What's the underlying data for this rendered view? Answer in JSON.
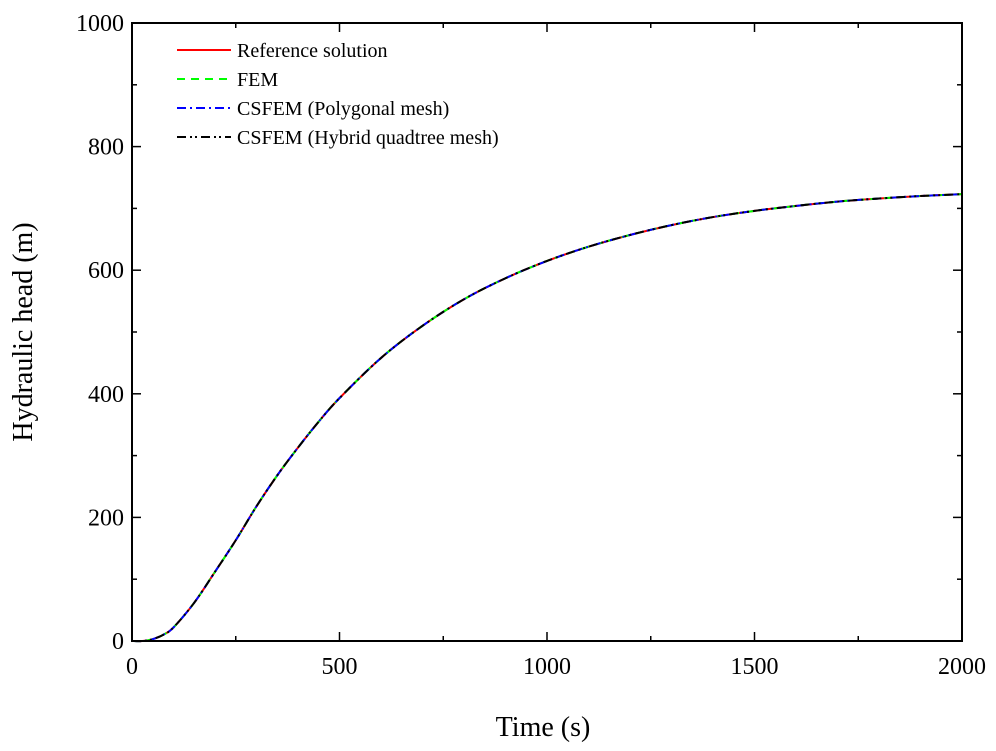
{
  "chart_data": {
    "type": "line",
    "title": "",
    "xlabel": "Time (s)",
    "ylabel": "Hydraulic head (m)",
    "xlim": [
      0,
      2000
    ],
    "ylim": [
      0,
      1000
    ],
    "xticks": [
      0,
      500,
      1000,
      1500,
      2000
    ],
    "yticks": [
      0,
      200,
      400,
      600,
      800,
      1000
    ],
    "xminor_step": 250,
    "yminor_step": 100,
    "grid": false,
    "legend_position": "top-left",
    "x": [
      0,
      25,
      50,
      75,
      100,
      150,
      200,
      250,
      300,
      350,
      400,
      450,
      500,
      600,
      700,
      800,
      900,
      1000,
      1100,
      1200,
      1300,
      1400,
      1500,
      1600,
      1700,
      1800,
      1900,
      2000
    ],
    "series": [
      {
        "name": "Reference solution",
        "color": "#ff0000",
        "dash": "solid",
        "values": [
          0,
          0,
          3,
          10,
          22,
          62,
          112,
          163,
          218,
          268,
          313,
          355,
          393,
          458,
          510,
          553,
          587,
          615,
          638,
          657,
          673,
          686,
          696,
          704,
          711,
          716,
          720,
          723
        ]
      },
      {
        "name": "FEM",
        "color": "#00ff00",
        "dash": "dash",
        "values": [
          0,
          0,
          3,
          10,
          22,
          62,
          112,
          163,
          218,
          268,
          313,
          355,
          393,
          458,
          510,
          553,
          587,
          615,
          638,
          657,
          673,
          686,
          696,
          704,
          711,
          716,
          720,
          723
        ]
      },
      {
        "name": "CSFEM (Polygonal mesh)",
        "color": "#0000ff",
        "dash": "dashdot",
        "values": [
          0,
          0,
          3,
          10,
          22,
          62,
          112,
          163,
          218,
          268,
          313,
          355,
          393,
          458,
          510,
          553,
          587,
          615,
          638,
          657,
          673,
          686,
          696,
          704,
          711,
          716,
          720,
          723
        ]
      },
      {
        "name": "CSFEM (Hybrid quadtree mesh)",
        "color": "#000000",
        "dash": "dashdotdot",
        "values": [
          0,
          0,
          3,
          10,
          22,
          62,
          112,
          163,
          218,
          268,
          313,
          355,
          393,
          458,
          510,
          553,
          587,
          615,
          638,
          657,
          673,
          686,
          696,
          704,
          711,
          716,
          720,
          723
        ]
      }
    ]
  }
}
